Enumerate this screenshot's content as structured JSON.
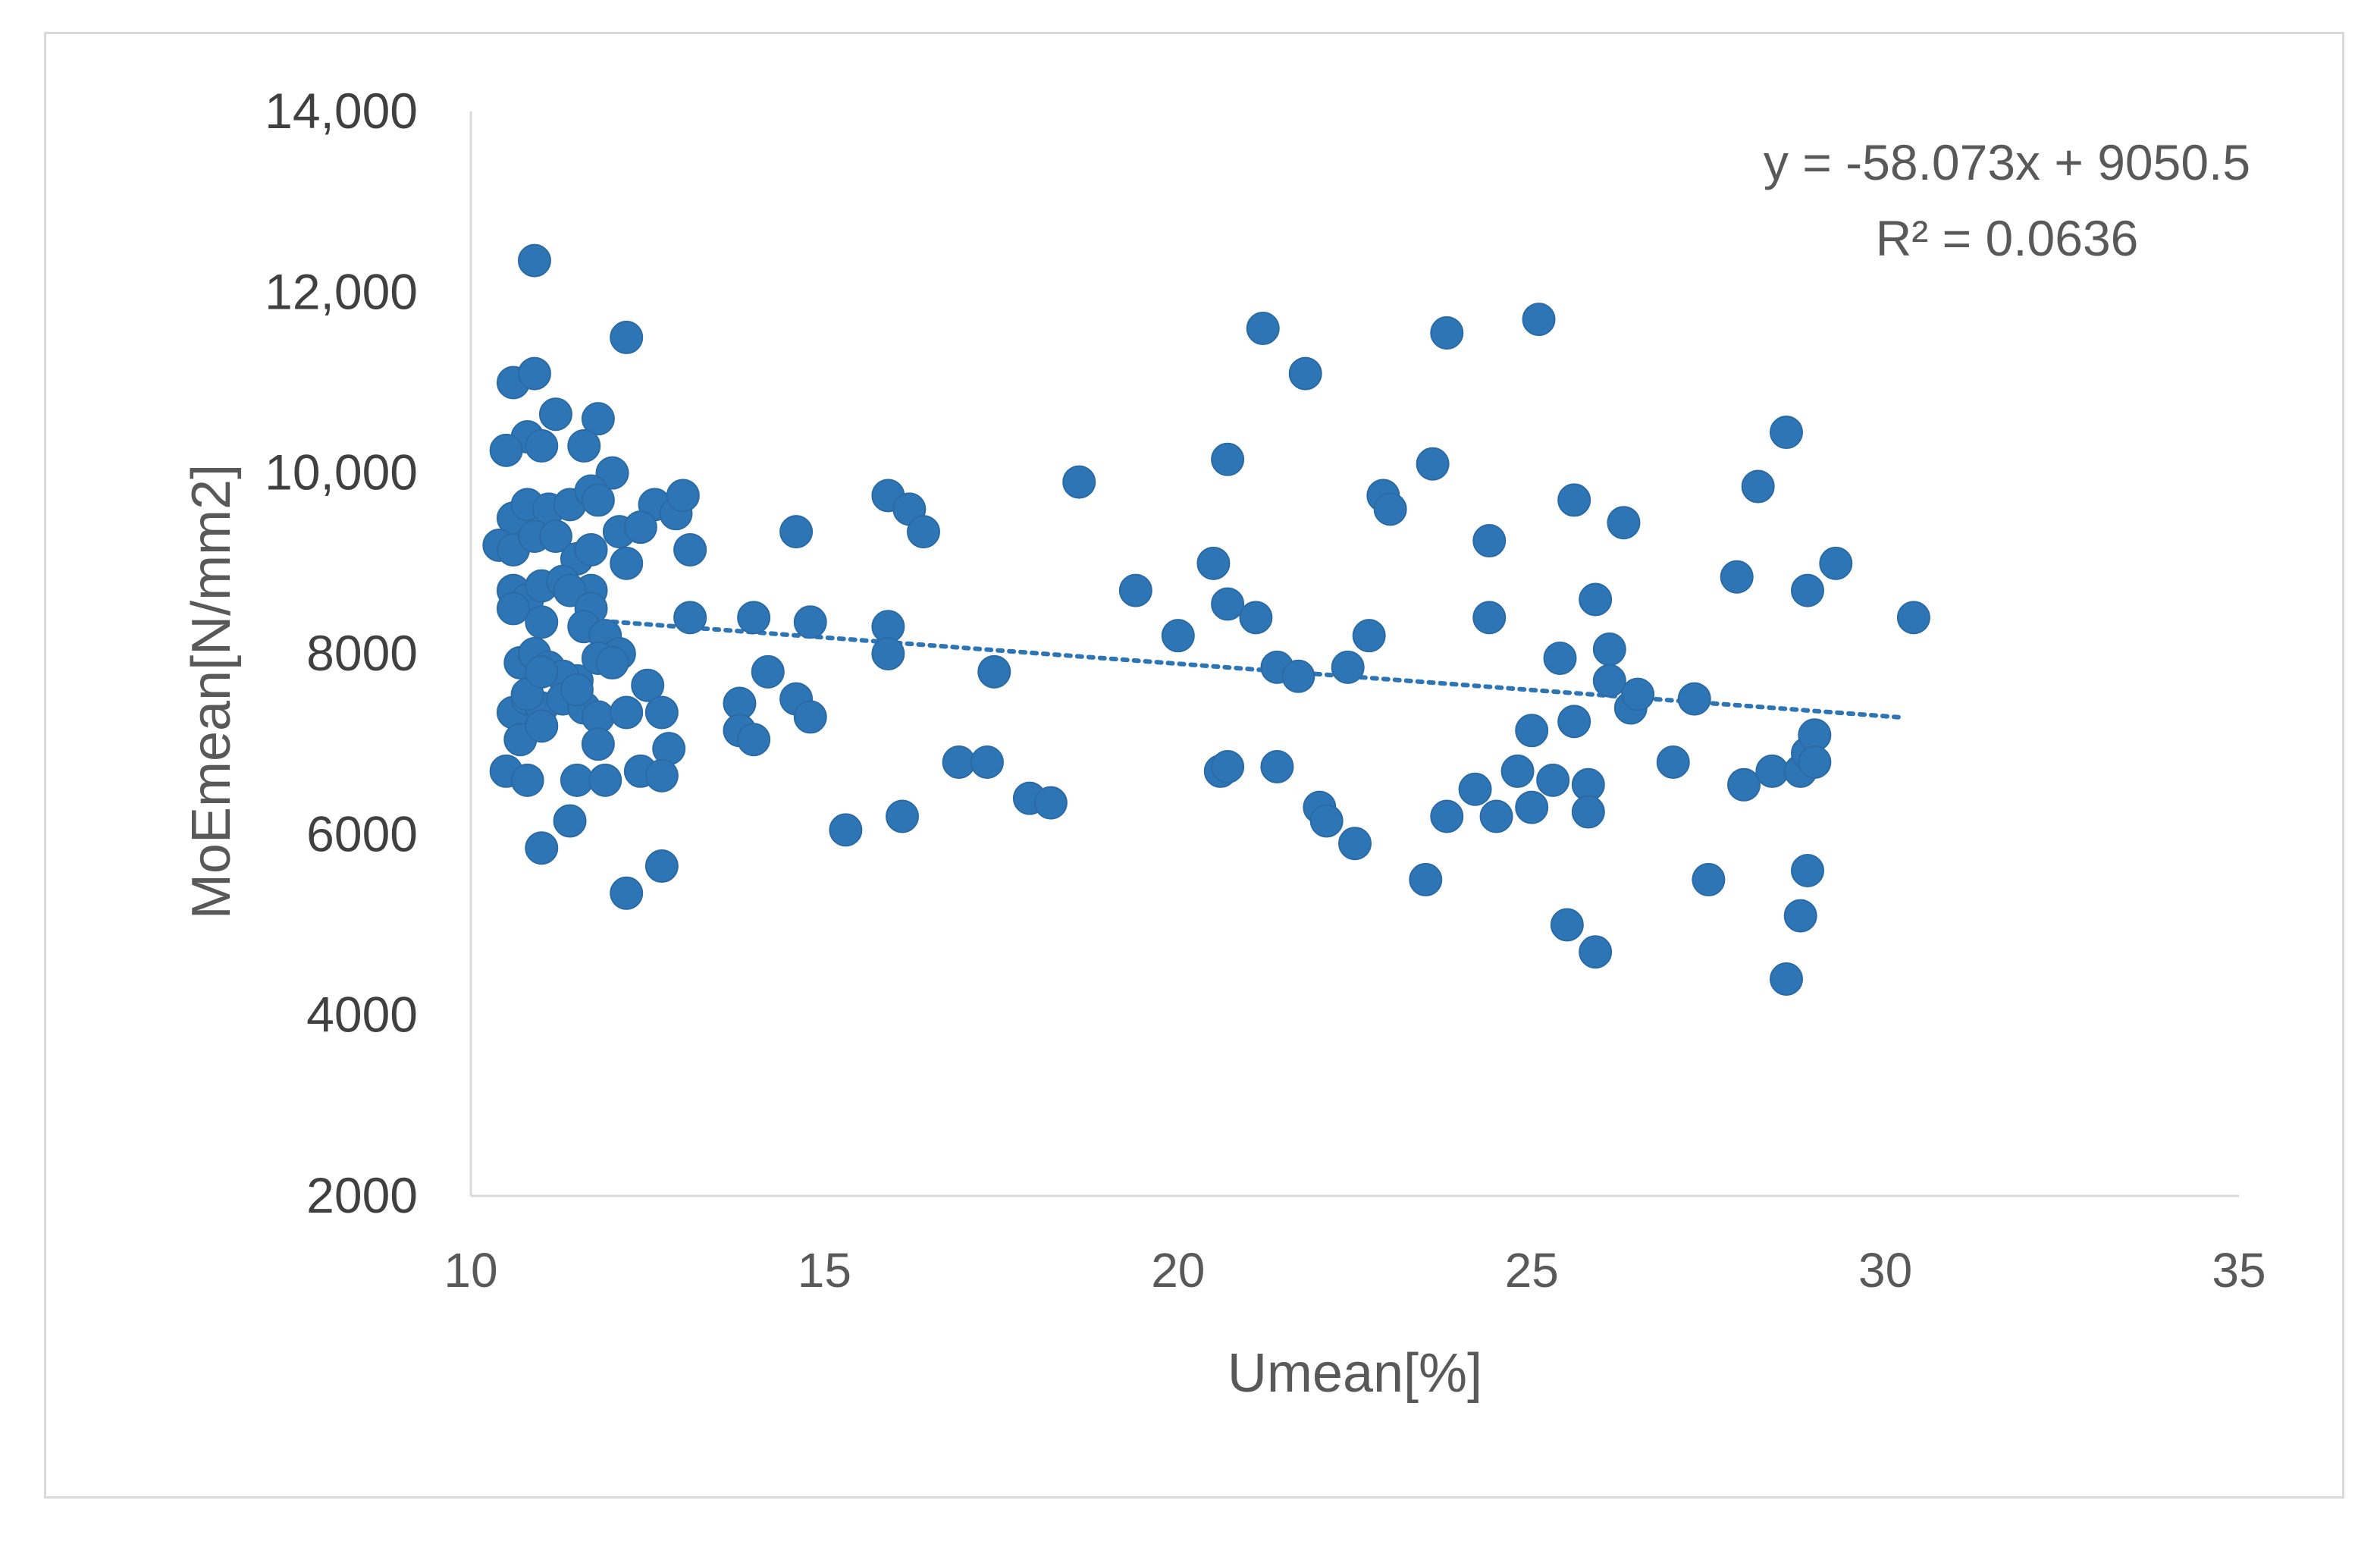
{
  "chart_data": {
    "type": "scatter",
    "title": "",
    "xlabel": "Umean[%]",
    "ylabel": "MoEmean[N/mm2]",
    "xlim": [
      10,
      35
    ],
    "ylim": [
      2000,
      14000
    ],
    "x_ticks": [
      10,
      15,
      20,
      25,
      30,
      35
    ],
    "x_tick_labels": [
      "10",
      "15",
      "20",
      "25",
      "30",
      "35"
    ],
    "y_ticks": [
      2000,
      4000,
      6000,
      8000,
      10000,
      12000,
      14000
    ],
    "y_tick_labels": [
      "2000",
      "4000",
      "6000",
      "8000",
      "10,000",
      "12,000",
      "14,000"
    ],
    "grid": false,
    "legend": "none",
    "marker_color": "#2E75B6",
    "trendline": {
      "type": "linear",
      "slope": -58.073,
      "intercept": 9050.5,
      "x_range": [
        12,
        30.2
      ],
      "style": "dotted",
      "color": "#2E75B6",
      "equation_label": "y = -58.073x + 9050.5",
      "r2_label": "R² = 0.0636"
    },
    "points": [
      [
        10.9,
        12350
      ],
      [
        10.6,
        11000
      ],
      [
        10.9,
        11100
      ],
      [
        12.2,
        11500
      ],
      [
        11.2,
        10650
      ],
      [
        11.8,
        10600
      ],
      [
        10.8,
        10400
      ],
      [
        11.0,
        10300
      ],
      [
        10.5,
        10250
      ],
      [
        11.6,
        10300
      ],
      [
        12.0,
        10000
      ],
      [
        10.6,
        9500
      ],
      [
        10.8,
        9650
      ],
      [
        11.1,
        9600
      ],
      [
        11.4,
        9650
      ],
      [
        11.7,
        9800
      ],
      [
        11.8,
        9700
      ],
      [
        12.6,
        9650
      ],
      [
        12.9,
        9550
      ],
      [
        13.0,
        9750
      ],
      [
        12.1,
        9350
      ],
      [
        12.4,
        9400
      ],
      [
        10.4,
        9200
      ],
      [
        10.6,
        9150
      ],
      [
        10.9,
        9300
      ],
      [
        11.2,
        9300
      ],
      [
        11.5,
        9050
      ],
      [
        11.7,
        9150
      ],
      [
        12.2,
        9000
      ],
      [
        13.1,
        9150
      ],
      [
        13.1,
        8400
      ],
      [
        10.6,
        8700
      ],
      [
        10.8,
        8600
      ],
      [
        11.0,
        8750
      ],
      [
        11.3,
        8800
      ],
      [
        11.7,
        8700
      ],
      [
        10.6,
        8500
      ],
      [
        11.0,
        8350
      ],
      [
        11.4,
        8700
      ],
      [
        11.7,
        8500
      ],
      [
        11.6,
        8300
      ],
      [
        11.9,
        8200
      ],
      [
        12.1,
        8000
      ],
      [
        10.7,
        7900
      ],
      [
        10.9,
        8000
      ],
      [
        11.1,
        7850
      ],
      [
        11.5,
        7700
      ],
      [
        11.8,
        7950
      ],
      [
        12.0,
        7900
      ],
      [
        12.5,
        7650
      ],
      [
        11.3,
        7750
      ],
      [
        10.6,
        7350
      ],
      [
        10.8,
        7500
      ],
      [
        11.0,
        7400
      ],
      [
        11.3,
        7500
      ],
      [
        11.6,
        7400
      ],
      [
        11.8,
        7300
      ],
      [
        12.2,
        7350
      ],
      [
        12.7,
        7350
      ],
      [
        10.7,
        7050
      ],
      [
        11.0,
        7200
      ],
      [
        11.8,
        7000
      ],
      [
        10.8,
        7550
      ],
      [
        12.8,
        6950
      ],
      [
        11.5,
        7600
      ],
      [
        11.0,
        7800
      ],
      [
        10.5,
        6700
      ],
      [
        10.8,
        6600
      ],
      [
        11.5,
        6600
      ],
      [
        11.9,
        6600
      ],
      [
        12.4,
        6700
      ],
      [
        12.7,
        6650
      ],
      [
        11.4,
        6150
      ],
      [
        11.0,
        5850
      ],
      [
        12.2,
        5350
      ],
      [
        12.7,
        5650
      ],
      [
        13.8,
        7450
      ],
      [
        13.8,
        7150
      ],
      [
        14.0,
        7050
      ],
      [
        14.2,
        7800
      ],
      [
        14.0,
        8400
      ],
      [
        14.6,
        7500
      ],
      [
        14.8,
        7300
      ],
      [
        14.8,
        8350
      ],
      [
        14.6,
        9350
      ],
      [
        15.3,
        6050
      ],
      [
        15.9,
        9750
      ],
      [
        16.2,
        9600
      ],
      [
        16.4,
        9350
      ],
      [
        15.9,
        8300
      ],
      [
        15.9,
        8000
      ],
      [
        16.1,
        6200
      ],
      [
        16.9,
        6800
      ],
      [
        17.3,
        6800
      ],
      [
        17.4,
        7800
      ],
      [
        17.9,
        6400
      ],
      [
        18.2,
        6350
      ],
      [
        18.6,
        9900
      ],
      [
        19.4,
        8700
      ],
      [
        20.0,
        8200
      ],
      [
        20.5,
        9000
      ],
      [
        20.7,
        10150
      ],
      [
        20.7,
        8550
      ],
      [
        21.1,
        8400
      ],
      [
        20.6,
        6700
      ],
      [
        20.7,
        6750
      ],
      [
        21.4,
        6750
      ],
      [
        21.2,
        11600
      ],
      [
        21.8,
        11100
      ],
      [
        21.4,
        7850
      ],
      [
        21.7,
        7750
      ],
      [
        22.0,
        6300
      ],
      [
        22.1,
        6150
      ],
      [
        22.5,
        5900
      ],
      [
        22.4,
        7850
      ],
      [
        22.7,
        8200
      ],
      [
        22.9,
        9750
      ],
      [
        23.0,
        9600
      ],
      [
        23.6,
        10100
      ],
      [
        23.8,
        11550
      ],
      [
        23.5,
        5500
      ],
      [
        23.8,
        6200
      ],
      [
        24.2,
        6500
      ],
      [
        24.4,
        8400
      ],
      [
        24.4,
        9250
      ],
      [
        24.5,
        6200
      ],
      [
        24.8,
        6700
      ],
      [
        25.0,
        7150
      ],
      [
        25.0,
        6300
      ],
      [
        25.3,
        6600
      ],
      [
        25.1,
        11700
      ],
      [
        25.4,
        7950
      ],
      [
        25.6,
        9700
      ],
      [
        25.6,
        7250
      ],
      [
        25.5,
        5000
      ],
      [
        25.8,
        6550
      ],
      [
        25.8,
        6250
      ],
      [
        25.9,
        8600
      ],
      [
        25.9,
        4700
      ],
      [
        26.1,
        8050
      ],
      [
        26.1,
        7700
      ],
      [
        26.3,
        9450
      ],
      [
        26.4,
        7400
      ],
      [
        26.5,
        7550
      ],
      [
        27.0,
        6800
      ],
      [
        27.3,
        7500
      ],
      [
        27.5,
        5500
      ],
      [
        27.9,
        8850
      ],
      [
        28.0,
        6550
      ],
      [
        28.2,
        9850
      ],
      [
        28.4,
        6700
      ],
      [
        28.6,
        10450
      ],
      [
        28.6,
        4400
      ],
      [
        28.8,
        6700
      ],
      [
        28.8,
        5100
      ],
      [
        28.9,
        8700
      ],
      [
        28.9,
        5600
      ],
      [
        28.9,
        6900
      ],
      [
        29.0,
        7100
      ],
      [
        29.0,
        6800
      ],
      [
        29.3,
        9000
      ],
      [
        30.4,
        8400
      ]
    ]
  }
}
